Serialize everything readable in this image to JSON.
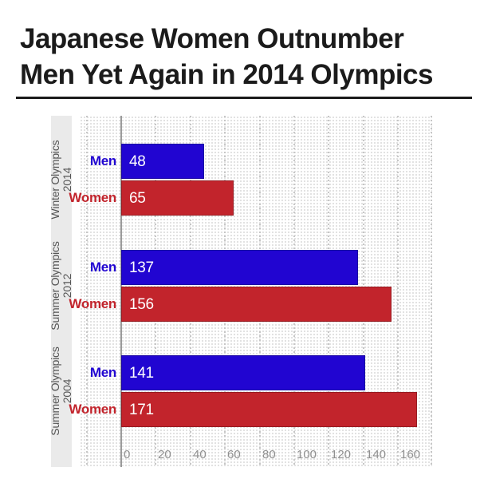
{
  "title": {
    "line1": "Japanese Women Outnumber",
    "line2": "Men Yet Again in 2014 Olympics"
  },
  "chart_data": {
    "type": "bar",
    "orientation": "horizontal",
    "title": "Japanese Women Outnumber Men Yet Again in 2014 Olympics",
    "categories": [
      "Winter Olympics 2014",
      "Summer Olympics 2012",
      "Summer Olympics 2004"
    ],
    "group_labels": [
      {
        "line1": "Winter Olympics",
        "line2": "2014"
      },
      {
        "line1": "Summer Olympics",
        "line2": "2012"
      },
      {
        "line1": "Summer Olympics",
        "line2": "2004"
      }
    ],
    "series": [
      {
        "name": "Men",
        "color": "#2105D1",
        "values": [
          48,
          137,
          141
        ]
      },
      {
        "name": "Women",
        "color": "#C2242C",
        "values": [
          65,
          156,
          171
        ]
      }
    ],
    "x_ticks": [
      0,
      20,
      40,
      60,
      80,
      100,
      120,
      140,
      160
    ],
    "xlim": [
      -24,
      180
    ],
    "ylabel": "",
    "xlabel": "",
    "legend": "none",
    "grid": "dotted vertical gridlines every 20",
    "value_label_color": "#FFFFFF",
    "plot_background": "light dotted texture"
  },
  "colors": {
    "title": "#1B1B1B",
    "underline": "#1B1B1B",
    "category_band_bg": "#EAEAEA",
    "category_text": "#565656",
    "tick_text": "#8F8F8F",
    "zero_line": "#9A9A9A",
    "gridline": "#C6C6C6",
    "dot_texture": "#D9D9D9",
    "page_bg": "#FFFFFF"
  }
}
